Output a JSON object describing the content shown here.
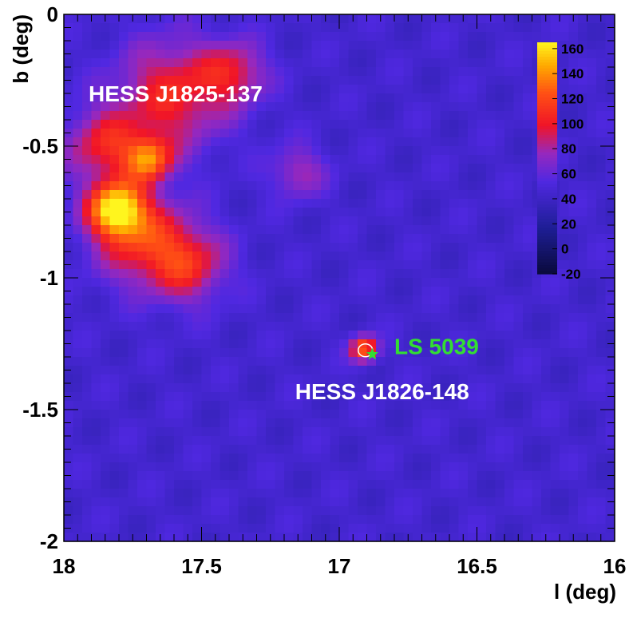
{
  "chart_data": {
    "type": "heatmap",
    "xlabel": "l (deg)",
    "ylabel": "b (deg)",
    "xlim": [
      18,
      16
    ],
    "ylim": [
      -2,
      0
    ],
    "x_ticks": [
      18,
      17.5,
      17,
      16.5,
      16
    ],
    "x_tick_labels": [
      "18",
      "17.5",
      "17",
      "16.5",
      "16"
    ],
    "y_ticks": [
      0,
      -0.5,
      -1,
      -1.5,
      -2
    ],
    "y_tick_labels": [
      "0",
      "-0.5",
      "-1",
      "-1.5",
      "-2"
    ],
    "colorbar": {
      "min": -20,
      "max": 165,
      "ticks": [
        -20,
        0,
        20,
        40,
        60,
        80,
        100,
        120,
        140,
        160
      ],
      "tick_labels": [
        "-20",
        "0",
        "20",
        "40",
        "60",
        "80",
        "100",
        "120",
        "140",
        "160"
      ]
    },
    "background_level": 45,
    "sources": [
      {
        "l": 17.81,
        "b": -0.74,
        "sigma": 0.07,
        "amp": 110
      },
      {
        "l": 17.69,
        "b": -0.55,
        "sigma": 0.06,
        "amp": 75
      },
      {
        "l": 17.72,
        "b": -0.85,
        "sigma": 0.12,
        "amp": 60
      },
      {
        "l": 17.6,
        "b": -0.3,
        "sigma": 0.14,
        "amp": 60
      },
      {
        "l": 17.38,
        "b": -0.22,
        "sigma": 0.08,
        "amp": 45
      },
      {
        "l": 17.55,
        "b": -0.95,
        "sigma": 0.1,
        "amp": 55
      },
      {
        "l": 17.85,
        "b": -0.5,
        "sigma": 0.1,
        "amp": 55
      },
      {
        "l": 17.15,
        "b": -0.6,
        "sigma": 0.07,
        "amp": 35
      },
      {
        "l": 16.91,
        "b": -1.27,
        "sigma": 0.035,
        "amp": 85
      }
    ],
    "annotations": [
      {
        "text": "HESS J1825-137",
        "l": 17.91,
        "b": -0.33,
        "color": "#ffffff"
      },
      {
        "text": "HESS J1826-148",
        "l": 17.16,
        "b": -1.46,
        "color": "#ffffff"
      },
      {
        "text": "LS 5039",
        "l": 16.8,
        "b": -1.29,
        "color": "#33dd33"
      }
    ],
    "markers": [
      {
        "type": "ellipse",
        "l": 16.905,
        "b": -1.275,
        "color": "#ffffff"
      },
      {
        "type": "star",
        "l": 16.88,
        "b": -1.29,
        "color": "#33dd33"
      }
    ]
  }
}
